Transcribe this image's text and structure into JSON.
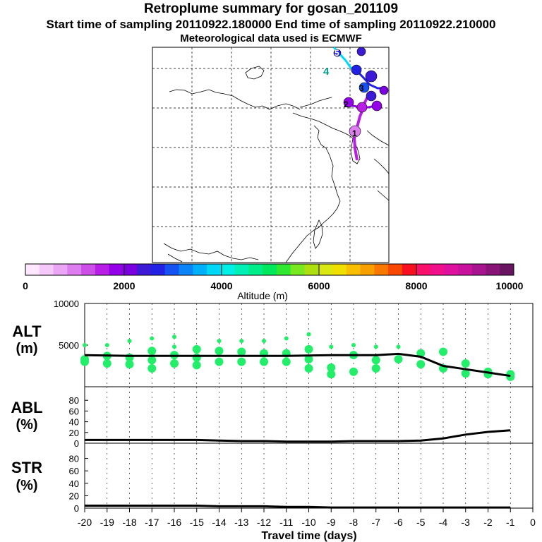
{
  "header": {
    "title": "Retroplume summary for gosan_201109",
    "sampling": "Start time of sampling 20110922.180000     End time of sampling 20110922.210000",
    "met": "Meteorological data used is ECMWF"
  },
  "colorbar": {
    "label": "Altitude (m)",
    "ticks": [
      "0",
      "2000",
      "4000",
      "6000",
      "8000",
      "10000"
    ],
    "colors": [
      "#ffe8ff",
      "#f5c8fa",
      "#eaa6f5",
      "#dd7df0",
      "#cc4fe8",
      "#b81ee6",
      "#9400e8",
      "#7a00e0",
      "#3c1ad6",
      "#2222e6",
      "#1452f2",
      "#0a84f8",
      "#00b0f8",
      "#00d8f8",
      "#00f0e8",
      "#00f0b8",
      "#00ee8a",
      "#00e85c",
      "#30e830",
      "#78e820",
      "#aee010",
      "#d8e810",
      "#f0e000",
      "#f8c000",
      "#f8a000",
      "#f87800",
      "#f84800",
      "#f81020",
      "#f8106a",
      "#f0108a",
      "#e0109e",
      "#c8129e",
      "#a81490",
      "#881478",
      "#681460"
    ]
  },
  "map": {
    "labels": [
      "4",
      "5",
      "3",
      "2",
      "1"
    ]
  },
  "panels": {
    "alt": {
      "name": "ALT",
      "unit": "(m)"
    },
    "abl": {
      "name": "ABL",
      "unit": "(%)"
    },
    "str": {
      "name": "STR",
      "unit": "(%)"
    }
  },
  "xaxis": {
    "label": "Travel time (days)"
  },
  "chart_data": [
    {
      "type": "line",
      "title": "ALT (m)",
      "x": [
        -20,
        -19,
        -18,
        -17,
        -16,
        -15,
        -14,
        -13,
        -12,
        -11,
        -10,
        -9,
        -8,
        -7,
        -6,
        -5,
        -4,
        -3,
        -2,
        -1
      ],
      "values": [
        3800,
        3750,
        3700,
        3700,
        3700,
        3700,
        3700,
        3700,
        3700,
        3700,
        3750,
        3800,
        3800,
        3800,
        3950,
        3600,
        2500,
        2100,
        1700,
        1300
      ],
      "points": [
        {
          "x": -20,
          "y": 3000
        },
        {
          "x": -20,
          "y": 3300
        },
        {
          "x": -20,
          "y": 5000
        },
        {
          "x": -19,
          "y": 2800
        },
        {
          "x": -19,
          "y": 3700
        },
        {
          "x": -19,
          "y": 5000
        },
        {
          "x": -18,
          "y": 2700
        },
        {
          "x": -18,
          "y": 3500
        },
        {
          "x": -18,
          "y": 5500
        },
        {
          "x": -17,
          "y": 2200
        },
        {
          "x": -17,
          "y": 3200
        },
        {
          "x": -17,
          "y": 4300
        },
        {
          "x": -17,
          "y": 5800
        },
        {
          "x": -16,
          "y": 2800
        },
        {
          "x": -16,
          "y": 3800
        },
        {
          "x": -16,
          "y": 4800
        },
        {
          "x": -16,
          "y": 6000
        },
        {
          "x": -15,
          "y": 2600
        },
        {
          "x": -15,
          "y": 3500
        },
        {
          "x": -15,
          "y": 4500
        },
        {
          "x": -14,
          "y": 3000
        },
        {
          "x": -14,
          "y": 4300
        },
        {
          "x": -14,
          "y": 5500
        },
        {
          "x": -13,
          "y": 3000
        },
        {
          "x": -13,
          "y": 4200
        },
        {
          "x": -13,
          "y": 5500
        },
        {
          "x": -12,
          "y": 3000
        },
        {
          "x": -12,
          "y": 4000
        },
        {
          "x": -12,
          "y": 5500
        },
        {
          "x": -11,
          "y": 3000
        },
        {
          "x": -11,
          "y": 4000
        },
        {
          "x": -11,
          "y": 5800
        },
        {
          "x": -10,
          "y": 2200
        },
        {
          "x": -10,
          "y": 3300
        },
        {
          "x": -10,
          "y": 4500
        },
        {
          "x": -10,
          "y": 6300
        },
        {
          "x": -9,
          "y": 1500
        },
        {
          "x": -9,
          "y": 2300
        },
        {
          "x": -9,
          "y": 4800
        },
        {
          "x": -8,
          "y": 1800
        },
        {
          "x": -8,
          "y": 3800
        },
        {
          "x": -8,
          "y": 5000
        },
        {
          "x": -7,
          "y": 2200
        },
        {
          "x": -7,
          "y": 3200
        },
        {
          "x": -7,
          "y": 4800
        },
        {
          "x": -6,
          "y": 3300
        },
        {
          "x": -6,
          "y": 4800
        },
        {
          "x": -5,
          "y": 4000
        },
        {
          "x": -5,
          "y": 2700
        },
        {
          "x": -4,
          "y": 4200
        },
        {
          "x": -4,
          "y": 2200
        },
        {
          "x": -3,
          "y": 2800
        },
        {
          "x": -3,
          "y": 1600
        },
        {
          "x": -2,
          "y": 1800
        },
        {
          "x": -2,
          "y": 1500
        },
        {
          "x": -1,
          "y": 1500
        },
        {
          "x": -1,
          "y": 1200
        }
      ],
      "ylim": [
        0,
        10000
      ],
      "yticks": [
        10000,
        5000
      ],
      "xlabel": "Travel time (days)",
      "ylabel": "ALT (m)"
    },
    {
      "type": "line",
      "title": "ABL (%)",
      "x": [
        -20,
        -19,
        -18,
        -17,
        -16,
        -15,
        -14,
        -13,
        -12,
        -11,
        -10,
        -9,
        -8,
        -7,
        -6,
        -5,
        -4,
        -3,
        -2,
        -1
      ],
      "values": [
        6,
        6,
        6,
        6,
        6,
        6,
        5,
        4,
        4,
        3,
        3,
        3,
        4,
        4,
        4,
        5,
        9,
        16,
        21,
        24
      ],
      "ylim": [
        0,
        100
      ],
      "yticks": [
        0,
        20,
        40,
        60,
        80
      ],
      "ylabel": "ABL (%)"
    },
    {
      "type": "line",
      "title": "STR (%)",
      "x": [
        -20,
        -19,
        -18,
        -17,
        -16,
        -15,
        -14,
        -13,
        -12,
        -11,
        -10,
        -9,
        -8,
        -7,
        -6,
        -5,
        -4,
        -3,
        -2,
        -1
      ],
      "values": [
        4,
        4,
        4,
        4,
        4,
        4,
        3,
        3,
        3,
        2,
        2,
        1,
        1,
        1,
        1,
        1,
        1,
        1,
        1,
        1
      ],
      "ylim": [
        0,
        100
      ],
      "yticks": [
        0,
        20,
        40,
        60,
        80
      ],
      "ylabel": "STR (%)"
    }
  ],
  "xticks": [
    "-20",
    "-19",
    "-18",
    "-17",
    "-16",
    "-15",
    "-14",
    "-13",
    "-12",
    "-11",
    "-10",
    "-9",
    "-8",
    "-7",
    "-6",
    "-5",
    "-4",
    "-3",
    "-2",
    "-1",
    "0"
  ]
}
